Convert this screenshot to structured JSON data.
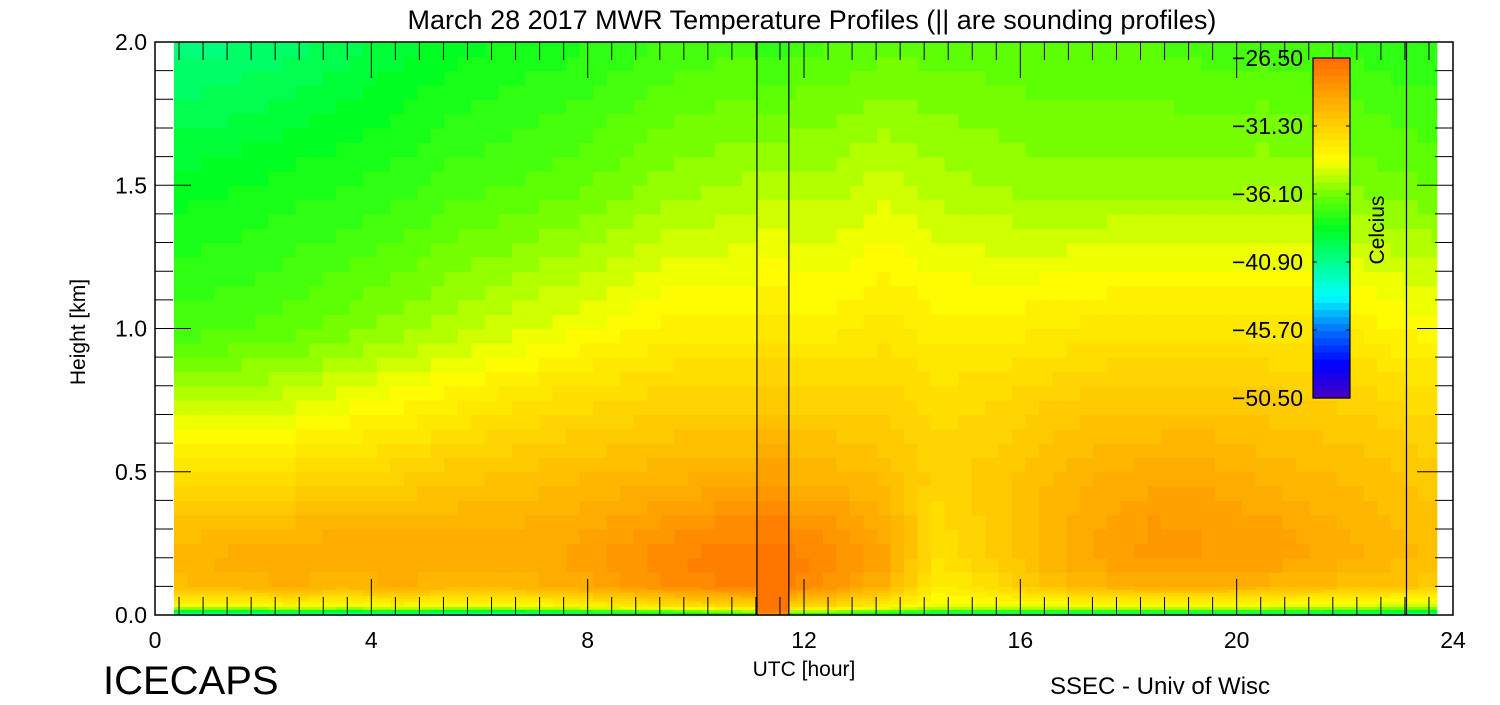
{
  "chart_data": {
    "type": "heatmap",
    "title": "March 28 2017 MWR Temperature Profiles (|| are sounding profiles)",
    "xlabel": "UTC [hour]",
    "ylabel": "Height [km]",
    "xlim": [
      0,
      24
    ],
    "ylim": [
      0,
      2
    ],
    "x_ticks": [
      "0",
      "4",
      "8",
      "12",
      "16",
      "20",
      "24"
    ],
    "y_ticks": [
      "0.0",
      "0.5",
      "1.0",
      "1.5",
      "2.0"
    ],
    "colorbar": {
      "label": "Celcius",
      "range": [
        -50.5,
        -26.5
      ],
      "ticks": [
        "-26.50",
        "-31.30",
        "-36.10",
        "-40.90",
        "-45.70",
        "-50.50"
      ]
    },
    "data_time_range": [
      0.35,
      23.7
    ],
    "sounding_lines": [
      11.13,
      11.72,
      23.14
    ],
    "times": [
      0.5,
      1.5,
      2.5,
      3.5,
      4.5,
      5.5,
      6.5,
      7.5,
      8.5,
      9.5,
      10.5,
      11.5,
      12.5,
      13.5,
      14.5,
      15.5,
      16.5,
      17.5,
      18.5,
      19.5,
      20.5,
      21.5,
      22.5,
      23.5
    ],
    "heights": [
      0.0,
      0.03,
      0.1,
      0.2,
      0.3,
      0.5,
      0.75,
      1.0,
      1.5,
      2.0
    ],
    "values": [
      [
        -43,
        -43,
        -42.5,
        -43,
        -42.5,
        -43,
        -43,
        -42,
        -41,
        -40,
        -39,
        -38,
        -38.5,
        -40,
        -41,
        -41,
        -41,
        -41,
        -41,
        -41,
        -41,
        -41,
        -41.5,
        -42
      ],
      [
        -34,
        -34,
        -33.5,
        -33.8,
        -33.5,
        -33.8,
        -33.8,
        -33.5,
        -33,
        -32.5,
        -32,
        -31.5,
        -32,
        -33,
        -34,
        -34,
        -34,
        -34,
        -34,
        -34,
        -34,
        -34.5,
        -34.5,
        -35
      ],
      [
        -30.5,
        -30,
        -29.8,
        -30,
        -29.8,
        -30,
        -30,
        -29.8,
        -29,
        -28.2,
        -27.8,
        -27.5,
        -28.5,
        -30,
        -33,
        -32,
        -30.8,
        -30,
        -29.8,
        -29.8,
        -30,
        -30.3,
        -30.8,
        -31
      ],
      [
        -29.8,
        -29.5,
        -29.2,
        -29.5,
        -29.3,
        -29.5,
        -29.5,
        -29.2,
        -28.5,
        -27.8,
        -27.5,
        -27.3,
        -28,
        -29,
        -32.3,
        -31.3,
        -30,
        -29,
        -28.6,
        -28.8,
        -28.8,
        -29.3,
        -29.8,
        -30.3
      ],
      [
        -30.5,
        -30.2,
        -30,
        -29.8,
        -29.8,
        -29.8,
        -29.7,
        -29.5,
        -29,
        -28.5,
        -28,
        -28,
        -28.5,
        -29.5,
        -32,
        -31,
        -30,
        -29.2,
        -28.6,
        -28.8,
        -29,
        -29.5,
        -30,
        -30.5
      ],
      [
        -32.5,
        -32.3,
        -32,
        -31.8,
        -31.5,
        -31,
        -30.8,
        -30.5,
        -30.2,
        -30,
        -29.8,
        -30,
        -30,
        -30.5,
        -31.5,
        -31,
        -30.3,
        -29.8,
        -29.5,
        -29.5,
        -30,
        -30.2,
        -30.5,
        -31
      ],
      [
        -35,
        -34.8,
        -34.5,
        -34,
        -33.5,
        -33,
        -32.5,
        -32,
        -31.8,
        -31.5,
        -31.5,
        -31.5,
        -31.5,
        -31.5,
        -32,
        -31.8,
        -31.3,
        -31,
        -31,
        -31,
        -31,
        -31.3,
        -31.5,
        -32
      ],
      [
        -37,
        -36.8,
        -36.5,
        -36,
        -35.5,
        -35,
        -34.5,
        -34,
        -33.5,
        -33,
        -33,
        -33,
        -33,
        -32.5,
        -33,
        -33,
        -32.8,
        -32.5,
        -32.5,
        -32.5,
        -32.5,
        -32.5,
        -33,
        -33.5
      ],
      [
        -38.5,
        -38.3,
        -38,
        -37.8,
        -37.5,
        -37,
        -36.8,
        -36.5,
        -36,
        -35.5,
        -35.3,
        -35,
        -35,
        -34.5,
        -35,
        -35.3,
        -35.5,
        -35.5,
        -35.5,
        -35.5,
        -35.3,
        -35.5,
        -36,
        -36.2
      ],
      [
        -40.5,
        -40.3,
        -40,
        -39.5,
        -39,
        -38.5,
        -38.2,
        -38,
        -37.6,
        -37.2,
        -37,
        -37,
        -36.8,
        -36.5,
        -36.5,
        -36.6,
        -36.8,
        -36.8,
        -36.8,
        -37,
        -37,
        -37.2,
        -37.5,
        -37.8
      ]
    ],
    "sounding_profile": {
      "time_range": [
        11.13,
        11.72
      ],
      "values": [
        -28,
        -26.8,
        -26.8,
        -27,
        -27.5,
        -29,
        -31,
        -32.5,
        -35,
        -37.5
      ]
    },
    "colors": {
      "colormap": [
        "#4a00c0",
        "#0000ff",
        "#0070ff",
        "#00ffff",
        "#00ff90",
        "#00ff20",
        "#70ff00",
        "#ffff00",
        "#ffd000",
        "#ffa000",
        "#ff6a00"
      ]
    }
  },
  "footer": {
    "brand": "ICECAPS",
    "credit": "SSEC - Univ of Wisc"
  }
}
